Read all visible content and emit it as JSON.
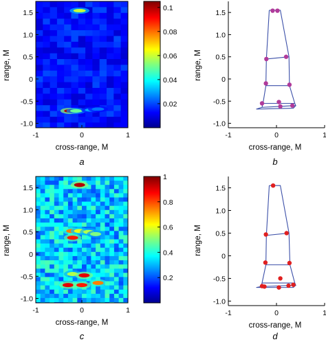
{
  "panels": [
    {
      "id": "a",
      "kind": "heatmap",
      "label": "a",
      "xlabel": "cross-range, M",
      "ylabel": "range, M",
      "xticks": [
        "-1",
        "0",
        "1"
      ],
      "yticks": [
        "1.5",
        "1.0",
        "0.5",
        "0",
        "-0.5",
        "-1.0"
      ],
      "colorbar_ticks": [
        "0.1",
        "0.08",
        "0.06",
        "0.04",
        "0.02"
      ]
    },
    {
      "id": "b",
      "kind": "scatter",
      "label": "b",
      "xlabel": "cross-range, M",
      "ylabel": "range, M",
      "xticks": [
        "-1",
        "0",
        "1"
      ],
      "yticks": [
        "1.5",
        "1.0",
        "0.5",
        "0",
        "-0.5",
        "-1.0"
      ]
    },
    {
      "id": "c",
      "kind": "heatmap",
      "label": "c",
      "xlabel": "cross-range, M",
      "ylabel": "range, M",
      "xticks": [
        "-1",
        "0",
        "1"
      ],
      "yticks": [
        "1.5",
        "1.0",
        "0.5",
        "0",
        "-0.5",
        "-1.0"
      ],
      "colorbar_ticks": [
        "1",
        "0.8",
        "0.6",
        "0.4",
        "0.2"
      ]
    },
    {
      "id": "d",
      "kind": "scatter",
      "label": "d",
      "xlabel": "cross-range, M",
      "ylabel": "range, M",
      "xticks": [
        "-1",
        "0",
        "1"
      ],
      "yticks": [
        "1.5",
        "1.0",
        "0.5",
        "0",
        "-0.5",
        "-1.0"
      ]
    }
  ],
  "chart_data": [
    {
      "type": "heatmap",
      "panel": "a",
      "xlabel": "cross-range, M",
      "ylabel": "range, M",
      "xlim": [
        -1,
        1
      ],
      "ylim": [
        -1.1,
        1.75
      ],
      "colormap": "jet",
      "clim": [
        0,
        0.105
      ],
      "peaks": [
        {
          "x": -0.05,
          "y": 1.54,
          "value": 0.06
        },
        {
          "x": -0.25,
          "y": -0.72,
          "value": 0.1
        },
        {
          "x": -0.12,
          "y": -0.72,
          "value": 0.05
        },
        {
          "x": 0.2,
          "y": -0.7,
          "value": 0.03
        },
        {
          "x": 0.35,
          "y": -0.68,
          "value": 0.025
        }
      ]
    },
    {
      "type": "scatter",
      "panel": "b",
      "xlabel": "cross-range, M",
      "ylabel": "range, M",
      "xlim": [
        -1,
        1
      ],
      "ylim": [
        -1.1,
        1.75
      ],
      "outline": [
        [
          -0.15,
          1.55
        ],
        [
          0.08,
          1.55
        ],
        [
          0.26,
          0.5
        ],
        [
          0.27,
          -0.15
        ],
        [
          0.38,
          -0.55
        ],
        [
          0.4,
          -0.6
        ],
        [
          -0.3,
          -0.64
        ],
        [
          -0.28,
          -0.55
        ],
        [
          -0.22,
          -0.15
        ],
        [
          -0.21,
          0.45
        ],
        [
          -0.15,
          1.55
        ]
      ],
      "outline_segments": [
        [
          [
            -0.21,
            0.45
          ],
          [
            0.26,
            0.5
          ]
        ],
        [
          [
            -0.22,
            -0.15
          ],
          [
            0.27,
            -0.15
          ]
        ],
        [
          [
            -0.28,
            -0.55
          ],
          [
            0.38,
            -0.55
          ]
        ],
        [
          [
            -0.3,
            -0.64
          ],
          [
            -0.42,
            -0.68
          ],
          [
            0.35,
            -0.66
          ],
          [
            0.4,
            -0.6
          ]
        ]
      ],
      "points": [
        {
          "x": -0.08,
          "y": 1.54
        },
        {
          "x": 0.02,
          "y": 1.54
        },
        {
          "x": -0.21,
          "y": 0.45
        },
        {
          "x": 0.2,
          "y": 0.5
        },
        {
          "x": -0.22,
          "y": -0.1
        },
        {
          "x": 0.27,
          "y": -0.13
        },
        {
          "x": -0.3,
          "y": -0.55
        },
        {
          "x": 0.05,
          "y": -0.52
        },
        {
          "x": 0.33,
          "y": -0.6
        },
        {
          "x": 0.08,
          "y": -0.62
        }
      ]
    },
    {
      "type": "heatmap",
      "panel": "c",
      "xlabel": "cross-range, M",
      "ylabel": "range, M",
      "xlim": [
        -1,
        1
      ],
      "ylim": [
        -1.1,
        1.75
      ],
      "colormap": "jet",
      "clim": [
        0,
        1
      ],
      "peaks": [
        {
          "x": -0.05,
          "y": 1.56,
          "value": 0.95
        },
        {
          "x": -0.22,
          "y": 0.52,
          "value": 0.75
        },
        {
          "x": -0.05,
          "y": 0.52,
          "value": 0.6
        },
        {
          "x": -0.2,
          "y": 0.37,
          "value": 0.85
        },
        {
          "x": 0.15,
          "y": 0.5,
          "value": 0.55
        },
        {
          "x": 0.3,
          "y": 0.45,
          "value": 0.5
        },
        {
          "x": -0.2,
          "y": -0.45,
          "value": 0.55
        },
        {
          "x": 0.05,
          "y": -0.48,
          "value": 0.9
        },
        {
          "x": -0.3,
          "y": -0.7,
          "value": 0.9
        },
        {
          "x": 0.0,
          "y": -0.7,
          "value": 0.85
        },
        {
          "x": 0.35,
          "y": -0.65,
          "value": 0.75
        }
      ]
    },
    {
      "type": "scatter",
      "panel": "d",
      "xlabel": "cross-range, M",
      "ylabel": "range, M",
      "xlim": [
        -1,
        1
      ],
      "ylim": [
        -1.1,
        1.75
      ],
      "outline": [
        [
          -0.15,
          1.55
        ],
        [
          0.08,
          1.55
        ],
        [
          0.26,
          0.5
        ],
        [
          0.28,
          -0.2
        ],
        [
          0.38,
          -0.6
        ],
        [
          0.4,
          -0.65
        ],
        [
          -0.32,
          -0.68
        ],
        [
          -0.3,
          -0.6
        ],
        [
          -0.22,
          -0.2
        ],
        [
          -0.21,
          0.45
        ],
        [
          -0.15,
          1.55
        ]
      ],
      "outline_segments": [
        [
          [
            -0.21,
            0.45
          ],
          [
            0.26,
            0.5
          ]
        ],
        [
          [
            -0.22,
            -0.2
          ],
          [
            0.28,
            -0.2
          ]
        ],
        [
          [
            -0.3,
            -0.6
          ],
          [
            0.38,
            -0.6
          ]
        ],
        [
          [
            -0.32,
            -0.68
          ],
          [
            -0.42,
            -0.7
          ],
          [
            0.35,
            -0.7
          ],
          [
            0.4,
            -0.65
          ]
        ]
      ],
      "points": [
        {
          "x": -0.07,
          "y": 1.55
        },
        {
          "x": -0.22,
          "y": 0.47
        },
        {
          "x": 0.21,
          "y": 0.5
        },
        {
          "x": -0.23,
          "y": -0.15
        },
        {
          "x": 0.27,
          "y": -0.16
        },
        {
          "x": 0.08,
          "y": -0.5
        },
        {
          "x": -0.3,
          "y": -0.67
        },
        {
          "x": -0.25,
          "y": -0.68
        },
        {
          "x": 0.05,
          "y": -0.7
        },
        {
          "x": 0.25,
          "y": -0.66
        },
        {
          "x": 0.35,
          "y": -0.64
        }
      ]
    }
  ]
}
